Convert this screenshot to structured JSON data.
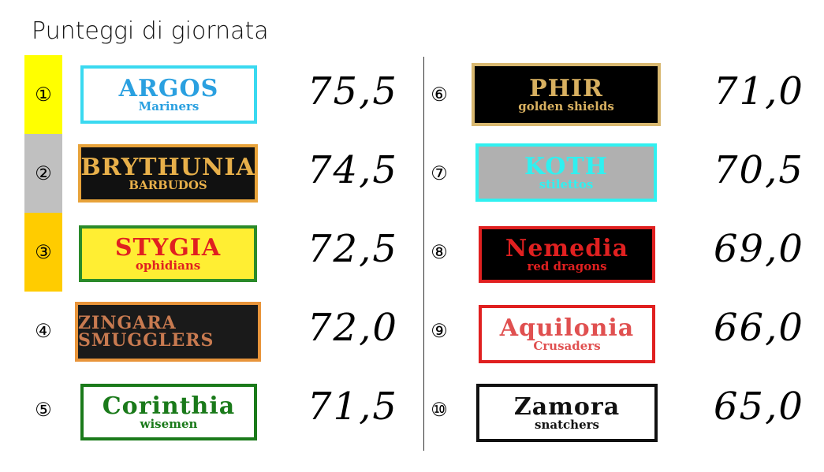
{
  "title": "Punteggi di giornata",
  "teams": [
    {
      "rank": "①",
      "name": "ARGOS",
      "sub": "Mariners",
      "score": "75,5",
      "rank_color": "#ffff00",
      "bg": "#ffffff",
      "border": "#3ad9f0",
      "fg": "#2aa0e0"
    },
    {
      "rank": "②",
      "name": "BRYTHUNIA",
      "sub": "BARBUDOS",
      "score": "74,5",
      "rank_color": "#c0c0c0",
      "bg": "#111111",
      "border": "#e8a33a",
      "fg": "#e8b04a"
    },
    {
      "rank": "③",
      "name": "STYGIA",
      "sub": "ophidians",
      "score": "72,5",
      "rank_color": "#ffcc00",
      "bg": "#ffee33",
      "border": "#2a8a2a",
      "fg": "#e02020"
    },
    {
      "rank": "④",
      "name": "ZINGARA SMUGGLERS",
      "sub": "",
      "score": "72,0",
      "rank_color": "",
      "bg": "#1a1a1a",
      "border": "#e8943a",
      "fg": "#c87a50"
    },
    {
      "rank": "⑤",
      "name": "Corinthia",
      "sub": "wisemen",
      "score": "71,5",
      "rank_color": "",
      "bg": "#ffffff",
      "border": "#1a7a1a",
      "fg": "#1a7a1a"
    },
    {
      "rank": "⑥",
      "name": "PHIR",
      "sub": "golden shields",
      "score": "71,0",
      "rank_color": "",
      "bg": "#000000",
      "border": "#d8b870",
      "fg": "#d8b060"
    },
    {
      "rank": "⑦",
      "name": "KOTH",
      "sub": "stilettos",
      "score": "70,5",
      "rank_color": "",
      "bg": "#b0b0b0",
      "border": "#30f0f0",
      "fg": "#30f0f0"
    },
    {
      "rank": "⑧",
      "name": "Nemedia",
      "sub": "red dragons",
      "score": "69,0",
      "rank_color": "",
      "bg": "#000000",
      "border": "#e02020",
      "fg": "#e02020"
    },
    {
      "rank": "⑨",
      "name": "Aquilonia",
      "sub": "Crusaders",
      "score": "66,0",
      "rank_color": "",
      "bg": "#ffffff",
      "border": "#e02020",
      "fg": "#e05050"
    },
    {
      "rank": "⑩",
      "name": "Zamora",
      "sub": "snatchers",
      "score": "65,0",
      "rank_color": "",
      "bg": "#ffffff",
      "border": "#111111",
      "fg": "#111111"
    }
  ]
}
